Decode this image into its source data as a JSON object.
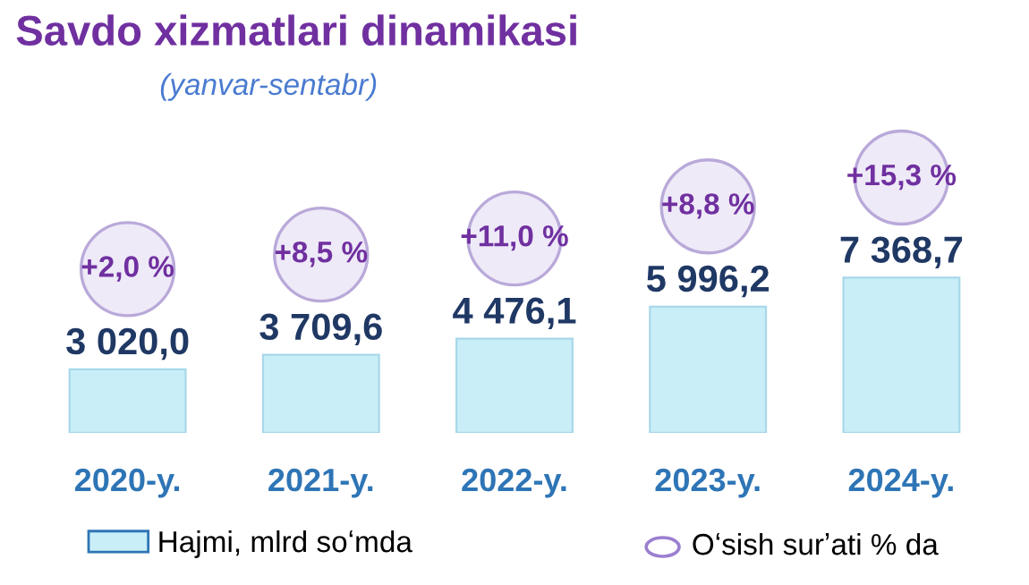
{
  "chart_data": {
    "type": "bar",
    "title": "Savdo xizmatlari dinamikasi",
    "subtitle": "(yanvar-sentabr)",
    "categories": [
      "2020-y.",
      "2021-y.",
      "2022-y.",
      "2023-y.",
      "2024-y."
    ],
    "series": [
      {
        "name": "Hajmi, mlrd soʻmda",
        "color": "#c9eef7",
        "values": [
          3020.0,
          3709.6,
          4476.1,
          5996.2,
          7368.7
        ],
        "value_labels": [
          "3 020,0",
          "3 709,6",
          "4 476,1",
          "5 996,2",
          "7 368,7"
        ]
      }
    ],
    "annotations": [
      "+2,0 %",
      "+8,5 %",
      "+11,0 %",
      "+8,8 %",
      "+15,3 %",
      "Oʻsish surʼati % da"
    ],
    "legend": "bottom",
    "grid": false
  }
}
